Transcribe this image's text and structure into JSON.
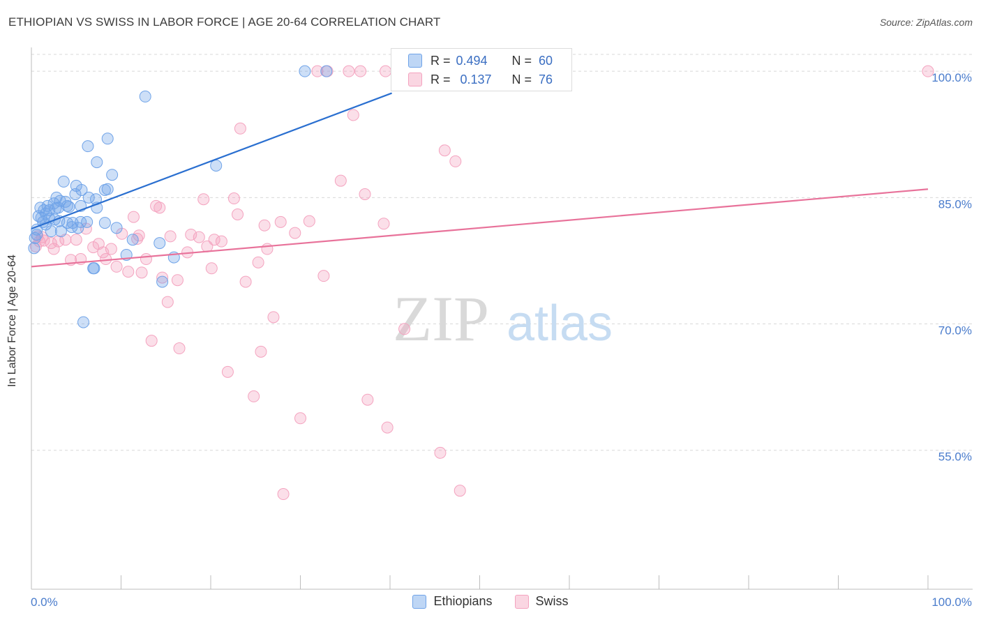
{
  "title": "ETHIOPIAN VS SWISS IN LABOR FORCE | AGE 20-64 CORRELATION CHART",
  "source": "Source: ZipAtlas.com",
  "watermark": {
    "zip": "ZIP",
    "atlas": "atlas"
  },
  "legend_top": {
    "ethiopians": {
      "r_label": "R =",
      "r_value": "0.494",
      "n_label": "N =",
      "n_value": "60"
    },
    "swiss": {
      "r_label": "R =",
      "r_value": "0.137",
      "n_label": "N =",
      "n_value": "76"
    }
  },
  "legend_bottom": {
    "ethiopians": "Ethiopians",
    "swiss": "Swiss"
  },
  "chart_data": {
    "type": "scatter",
    "title": "ETHIOPIAN VS SWISS IN LABOR FORCE | AGE 20-64 CORRELATION CHART",
    "xlabel": "",
    "ylabel": "In Labor Force | Age 20-64",
    "xlim": [
      0,
      100
    ],
    "ylim": [
      38.5,
      102
    ],
    "x_tick_labels": [
      "0.0%",
      "100.0%"
    ],
    "y_ticks": [
      55,
      70,
      85,
      100
    ],
    "y_tick_labels": [
      "55.0%",
      "70.0%",
      "85.0%",
      "100.0%"
    ],
    "colors": {
      "ethiopians": "#6fa3e8",
      "ethiopians_line": "#2a6fd0",
      "swiss": "#f4a3bf",
      "swiss_line": "#e8729a"
    },
    "series": [
      {
        "name": "Ethiopians",
        "trend": {
          "x": [
            0,
            40.2
          ],
          "y": [
            81.3,
            97.4
          ]
        },
        "points": [
          [
            0.3,
            79
          ],
          [
            0.4,
            80.2
          ],
          [
            0.6,
            81.2
          ],
          [
            0.8,
            82.8
          ],
          [
            1.0,
            83.8
          ],
          [
            1.1,
            82.6
          ],
          [
            1.4,
            83.5
          ],
          [
            1.6,
            81.8
          ],
          [
            1.6,
            83.1
          ],
          [
            1.8,
            84.0
          ],
          [
            2.0,
            82.5
          ],
          [
            2.2,
            81.0
          ],
          [
            2.5,
            84.3
          ],
          [
            2.6,
            82.4
          ],
          [
            2.8,
            85.0
          ],
          [
            3.0,
            83.8
          ],
          [
            3.2,
            84.6
          ],
          [
            3.6,
            86.9
          ],
          [
            3.8,
            84.5
          ],
          [
            4.0,
            82.0
          ],
          [
            4.2,
            83.9
          ],
          [
            4.5,
            81.5
          ],
          [
            4.6,
            82.0
          ],
          [
            5.0,
            86.4
          ],
          [
            5.6,
            85.9
          ],
          [
            6.4,
            85.0
          ],
          [
            5.5,
            84.0
          ],
          [
            7.0,
            76.6
          ],
          [
            7.3,
            89.2
          ],
          [
            6.3,
            91.1
          ],
          [
            8.5,
            92.0
          ],
          [
            8.2,
            85.9
          ],
          [
            9.0,
            87.7
          ],
          [
            9.5,
            81.4
          ],
          [
            11.3,
            80.0
          ],
          [
            12.7,
            97.0
          ],
          [
            10.6,
            78.2
          ],
          [
            14.3,
            79.6
          ],
          [
            14.6,
            75.0
          ],
          [
            15.9,
            77.9
          ],
          [
            20.6,
            88.8
          ],
          [
            5.8,
            70.2
          ],
          [
            6.9,
            76.6
          ],
          [
            3.1,
            82.2
          ],
          [
            2.0,
            83.5
          ],
          [
            7.2,
            84.8
          ],
          [
            8.5,
            86.0
          ],
          [
            6.2,
            82.1
          ],
          [
            5.2,
            81.4
          ],
          [
            4.9,
            85.4
          ],
          [
            30.5,
            100
          ],
          [
            32.9,
            100
          ],
          [
            0.6,
            80.6
          ],
          [
            1.3,
            82.1
          ],
          [
            2.7,
            83.7
          ],
          [
            4.0,
            84.0
          ],
          [
            5.5,
            82.1
          ],
          [
            7.3,
            83.8
          ],
          [
            8.2,
            82.0
          ],
          [
            3.3,
            81.0
          ]
        ]
      },
      {
        "name": "Swiss",
        "trend": {
          "x": [
            0,
            100
          ],
          "y": [
            76.8,
            86.0
          ]
        },
        "points": [
          [
            0.5,
            79.2
          ],
          [
            0.9,
            79.8
          ],
          [
            1.2,
            80.3
          ],
          [
            1.4,
            79.9
          ],
          [
            2.5,
            78.9
          ],
          [
            3.0,
            79.8
          ],
          [
            3.8,
            80.0
          ],
          [
            4.4,
            77.6
          ],
          [
            5.0,
            80.0
          ],
          [
            5.5,
            77.7
          ],
          [
            6.1,
            81.3
          ],
          [
            7.5,
            79.5
          ],
          [
            8.0,
            78.5
          ],
          [
            8.3,
            77.7
          ],
          [
            9.5,
            76.8
          ],
          [
            10.1,
            80.7
          ],
          [
            10.8,
            76.2
          ],
          [
            11.4,
            82.7
          ],
          [
            11.8,
            80.1
          ],
          [
            12.3,
            76.1
          ],
          [
            12.8,
            77.7
          ],
          [
            13.4,
            68.0
          ],
          [
            13.9,
            84.0
          ],
          [
            14.3,
            83.8
          ],
          [
            14.6,
            75.5
          ],
          [
            15.2,
            72.6
          ],
          [
            15.5,
            80.4
          ],
          [
            16.3,
            75.2
          ],
          [
            16.5,
            67.1
          ],
          [
            17.4,
            78.5
          ],
          [
            17.8,
            80.6
          ],
          [
            18.7,
            80.3
          ],
          [
            19.2,
            84.8
          ],
          [
            19.6,
            79.2
          ],
          [
            20.1,
            76.6
          ],
          [
            20.4,
            80.0
          ],
          [
            21.2,
            79.8
          ],
          [
            21.9,
            64.3
          ],
          [
            22.6,
            84.9
          ],
          [
            23.0,
            83.0
          ],
          [
            23.3,
            93.2
          ],
          [
            23.9,
            75.0
          ],
          [
            24.8,
            61.4
          ],
          [
            25.3,
            77.3
          ],
          [
            26.0,
            81.7
          ],
          [
            25.6,
            66.7
          ],
          [
            26.3,
            78.9
          ],
          [
            27.0,
            70.8
          ],
          [
            27.8,
            82.1
          ],
          [
            29.4,
            80.8
          ],
          [
            30.0,
            58.8
          ],
          [
            31.0,
            82.2
          ],
          [
            32.6,
            75.7
          ],
          [
            34.5,
            87.0
          ],
          [
            35.4,
            100
          ],
          [
            35.9,
            94.8
          ],
          [
            37.2,
            85.4
          ],
          [
            37.5,
            61.0
          ],
          [
            39.3,
            81.9
          ],
          [
            39.7,
            57.7
          ],
          [
            41.6,
            69.4
          ],
          [
            45.6,
            54.7
          ],
          [
            46.1,
            90.6
          ],
          [
            47.3,
            89.3
          ],
          [
            47.8,
            50.2
          ],
          [
            100,
            100
          ],
          [
            31.9,
            100
          ],
          [
            33.0,
            100
          ],
          [
            36.7,
            100
          ],
          [
            39.5,
            100
          ],
          [
            0.7,
            80.4
          ],
          [
            2.2,
            79.6
          ],
          [
            6.9,
            79.1
          ],
          [
            8.9,
            78.9
          ],
          [
            12.0,
            80.5
          ],
          [
            28.1,
            49.8
          ]
        ]
      }
    ]
  }
}
